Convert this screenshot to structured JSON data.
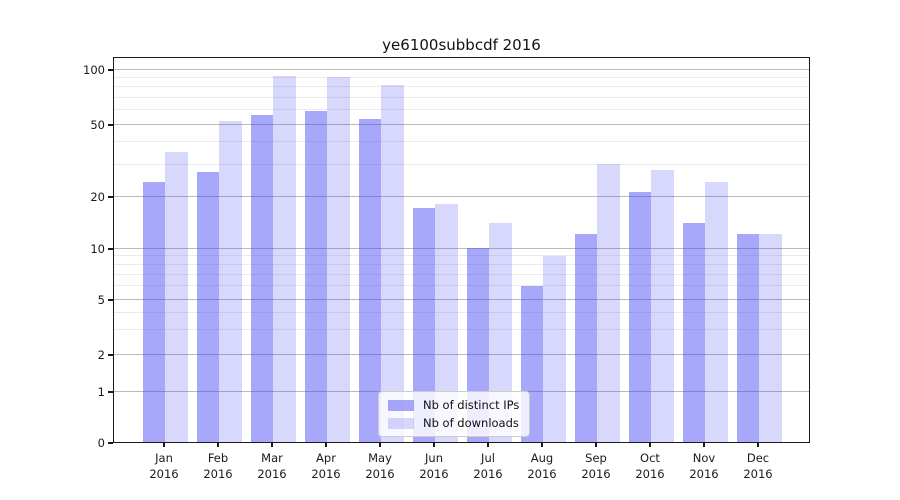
{
  "title": "ye6100subbcdf 2016",
  "chart_data": {
    "type": "bar",
    "categories": [
      "Jan",
      "Feb",
      "Mar",
      "Apr",
      "May",
      "Jun",
      "Jul",
      "Aug",
      "Sep",
      "Oct",
      "Nov",
      "Dec"
    ],
    "year_label": "2016",
    "series": [
      {
        "name": "Nb of distinct IPs",
        "color": "rgba(70,70,245,0.47)",
        "color_on_white": "#a8a8f8",
        "values": [
          24,
          27,
          56,
          59,
          53,
          17,
          10,
          6,
          12,
          21,
          14,
          12
        ]
      },
      {
        "name": "Nb of downloads",
        "color": "rgba(70,70,245,0.21)",
        "color_on_white": "#d8d8f8",
        "values": [
          35,
          52,
          91,
          90,
          82,
          18,
          14,
          9,
          30,
          28,
          24,
          12
        ]
      }
    ],
    "yticks": [
      0,
      1,
      2,
      5,
      10,
      20,
      50,
      100
    ],
    "minor_gridlines": [
      3,
      4,
      6,
      7,
      8,
      9,
      30,
      40,
      60,
      70,
      80,
      90
    ],
    "scale": "symlog",
    "ylim": [
      0,
      117
    ],
    "xlabel": "",
    "ylabel": "",
    "grid": true,
    "legend_position": "lower center"
  }
}
